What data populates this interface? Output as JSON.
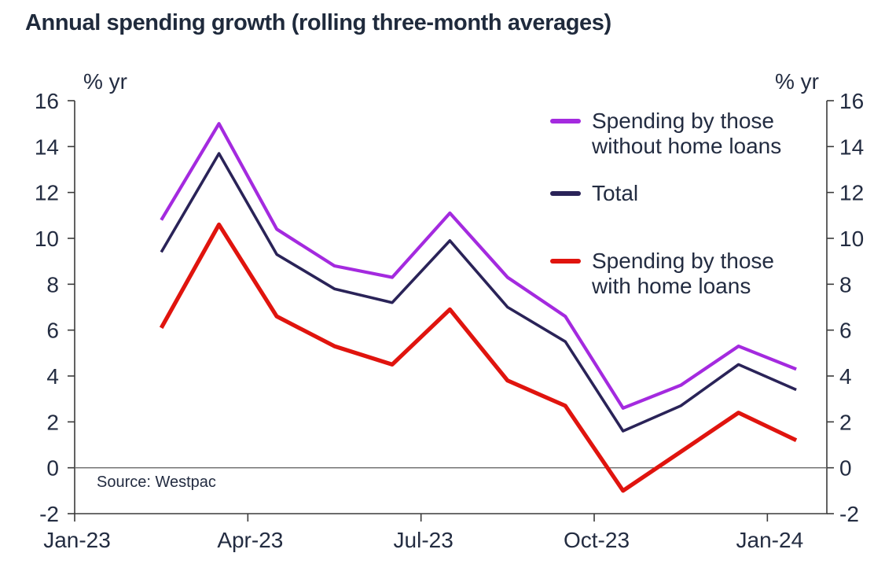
{
  "title": "Annual spending growth (rolling three-month averages)",
  "axis": {
    "unit_left": "% yr",
    "unit_right": "% yr"
  },
  "source": "Source: Westpac",
  "legend": [
    {
      "lines": [
        "Spending by those",
        "without home loans"
      ],
      "color": "#A42ADF",
      "series_index": 0
    },
    {
      "lines": [
        "Total"
      ],
      "color": "#2A2358",
      "series_index": 1
    },
    {
      "lines": [
        "Spending by those",
        "with home loans"
      ],
      "color": "#E0140E",
      "series_index": 2
    }
  ],
  "colors": {
    "ink": "#232C41",
    "axis": "#3B3B3B",
    "zero_line": "#6A6A6A",
    "purple": "#A42ADF",
    "navy": "#2A2358",
    "red": "#E0140E"
  },
  "chart_data": {
    "type": "line",
    "title": "Annual spending growth (rolling three-month averages)",
    "ylabel": "% yr",
    "xlabel": "",
    "grid": false,
    "zero_line": true,
    "legend_position": "inside-top-right",
    "ylim": [
      -2,
      16
    ],
    "y_tick_step": 2,
    "y_ticks": [
      16,
      14,
      12,
      10,
      8,
      6,
      4,
      2,
      0,
      -2
    ],
    "y_tick_labels": [
      "16",
      "14",
      "12",
      "10",
      "8",
      "6",
      "4",
      "2",
      "0",
      "-2"
    ],
    "x_tick_labels": [
      "Jan-23",
      "Apr-23",
      "Jul-23",
      "Oct-23",
      "Jan-24"
    ],
    "x_tick_months": [
      0,
      3,
      6,
      9,
      12
    ],
    "x_months_span": 13.03,
    "point_month_offset": 1.5,
    "categories": [
      "Feb-23",
      "Mar-23",
      "Apr-23",
      "May-23",
      "Jun-23",
      "Jul-23",
      "Aug-23",
      "Sep-23",
      "Oct-23",
      "Nov-23",
      "Dec-23",
      "Jan-24"
    ],
    "series": [
      {
        "name": "Spending by those without home loans",
        "color": "#A42ADF",
        "stroke_width": 4.2,
        "values": [
          10.8,
          15.0,
          10.4,
          8.8,
          8.3,
          11.1,
          8.3,
          6.6,
          2.6,
          3.6,
          5.3,
          4.3
        ]
      },
      {
        "name": "Total",
        "color": "#2A2358",
        "stroke_width": 3.6,
        "values": [
          9.4,
          13.7,
          9.3,
          7.8,
          7.2,
          9.9,
          7.0,
          5.5,
          1.6,
          2.7,
          4.5,
          3.4
        ]
      },
      {
        "name": "Spending by those with home loans",
        "color": "#E0140E",
        "stroke_width": 5.2,
        "values": [
          6.1,
          10.6,
          6.6,
          5.3,
          4.5,
          6.9,
          3.8,
          2.7,
          -1.0,
          0.7,
          2.4,
          1.2
        ]
      }
    ],
    "source": "Source: Westpac"
  }
}
